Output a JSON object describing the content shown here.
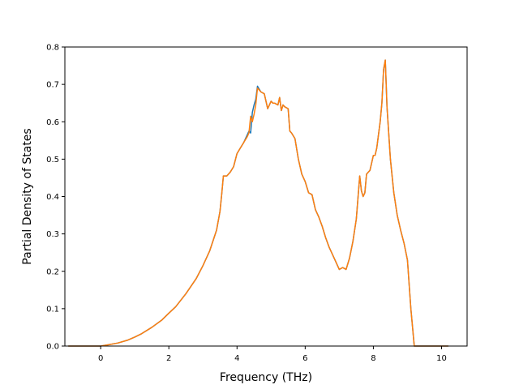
{
  "chart_data": {
    "type": "line",
    "title": "",
    "xlabel": "Frequency (THz)",
    "ylabel": "Partial Density of States",
    "xlim": [
      -1.05,
      10.75
    ],
    "ylim": [
      0.0,
      0.8
    ],
    "xticks": [
      0,
      2,
      4,
      6,
      8,
      10
    ],
    "yticks": [
      0.0,
      0.1,
      0.2,
      0.3,
      0.4,
      0.5,
      0.6,
      0.7,
      0.8
    ],
    "xtick_labels": [
      "0",
      "2",
      "4",
      "6",
      "8",
      "10"
    ],
    "ytick_labels": [
      "0.0",
      "0.1",
      "0.2",
      "0.3",
      "0.4",
      "0.5",
      "0.6",
      "0.7",
      "0.8"
    ],
    "grid": false,
    "legend": "none",
    "series": [
      {
        "color": "#1f77b4",
        "x": [
          -0.95,
          0.0,
          0.2,
          0.5,
          0.8,
          1.0,
          1.2,
          1.5,
          1.8,
          2.0,
          2.2,
          2.5,
          2.8,
          3.0,
          3.2,
          3.4,
          3.5,
          3.55,
          3.6,
          3.7,
          3.8,
          3.9,
          4.0,
          4.1,
          4.2,
          4.3,
          4.35,
          4.4,
          4.45,
          4.5,
          4.55,
          4.6,
          4.7,
          4.8,
          4.9,
          5.0,
          5.05,
          5.1,
          5.2,
          5.25,
          5.3,
          5.35,
          5.4,
          5.5,
          5.55,
          5.6,
          5.7,
          5.8,
          5.9,
          6.0,
          6.1,
          6.2,
          6.3,
          6.4,
          6.5,
          6.6,
          6.7,
          6.8,
          6.9,
          7.0,
          7.1,
          7.2,
          7.3,
          7.4,
          7.5,
          7.6,
          7.65,
          7.7,
          7.75,
          7.8,
          7.85,
          7.9,
          7.95,
          8.0,
          8.05,
          8.1,
          8.15,
          8.2,
          8.25,
          8.3,
          8.35,
          8.4,
          8.45,
          8.5,
          8.6,
          8.7,
          8.8,
          8.9,
          9.0,
          9.1,
          9.15,
          9.2,
          9.25,
          9.3,
          9.5,
          10.2
        ],
        "y": [
          0.0,
          0.0,
          0.003,
          0.008,
          0.016,
          0.024,
          0.033,
          0.05,
          0.07,
          0.088,
          0.105,
          0.14,
          0.18,
          0.215,
          0.255,
          0.31,
          0.36,
          0.405,
          0.455,
          0.455,
          0.465,
          0.48,
          0.515,
          0.53,
          0.545,
          0.565,
          0.575,
          0.57,
          0.625,
          0.645,
          0.66,
          0.695,
          0.68,
          0.675,
          0.635,
          0.655,
          0.65,
          0.65,
          0.645,
          0.665,
          0.63,
          0.645,
          0.64,
          0.635,
          0.575,
          0.57,
          0.555,
          0.5,
          0.46,
          0.44,
          0.41,
          0.405,
          0.365,
          0.345,
          0.32,
          0.29,
          0.265,
          0.245,
          0.225,
          0.205,
          0.21,
          0.205,
          0.235,
          0.28,
          0.34,
          0.455,
          0.415,
          0.4,
          0.41,
          0.46,
          0.465,
          0.47,
          0.49,
          0.51,
          0.51,
          0.53,
          0.565,
          0.6,
          0.65,
          0.74,
          0.765,
          0.64,
          0.57,
          0.5,
          0.41,
          0.35,
          0.31,
          0.275,
          0.23,
          0.1,
          0.05,
          0.0,
          0.0,
          0.0,
          0.0,
          0.0
        ]
      },
      {
        "color": "#ff7f0e",
        "x": [
          -0.95,
          0.0,
          0.2,
          0.5,
          0.8,
          1.0,
          1.2,
          1.5,
          1.8,
          2.0,
          2.2,
          2.5,
          2.8,
          3.0,
          3.2,
          3.4,
          3.5,
          3.55,
          3.6,
          3.7,
          3.8,
          3.9,
          4.0,
          4.1,
          4.2,
          4.3,
          4.35,
          4.4,
          4.45,
          4.5,
          4.55,
          4.6,
          4.7,
          4.8,
          4.9,
          5.0,
          5.05,
          5.1,
          5.2,
          5.25,
          5.3,
          5.35,
          5.4,
          5.5,
          5.55,
          5.6,
          5.7,
          5.8,
          5.9,
          6.0,
          6.1,
          6.2,
          6.3,
          6.4,
          6.5,
          6.6,
          6.7,
          6.8,
          6.9,
          7.0,
          7.1,
          7.2,
          7.3,
          7.4,
          7.5,
          7.6,
          7.65,
          7.7,
          7.75,
          7.8,
          7.85,
          7.9,
          7.95,
          8.0,
          8.05,
          8.1,
          8.15,
          8.2,
          8.25,
          8.3,
          8.35,
          8.4,
          8.45,
          8.5,
          8.6,
          8.7,
          8.8,
          8.9,
          9.0,
          9.1,
          9.15,
          9.2,
          9.25,
          9.3,
          9.5,
          10.2
        ],
        "y": [
          0.0,
          0.0,
          0.003,
          0.008,
          0.016,
          0.024,
          0.033,
          0.05,
          0.07,
          0.088,
          0.105,
          0.14,
          0.18,
          0.215,
          0.255,
          0.31,
          0.36,
          0.405,
          0.455,
          0.455,
          0.465,
          0.48,
          0.515,
          0.53,
          0.545,
          0.56,
          0.57,
          0.615,
          0.6,
          0.62,
          0.645,
          0.69,
          0.68,
          0.675,
          0.635,
          0.655,
          0.65,
          0.65,
          0.645,
          0.665,
          0.63,
          0.645,
          0.64,
          0.635,
          0.575,
          0.57,
          0.555,
          0.5,
          0.46,
          0.44,
          0.41,
          0.405,
          0.365,
          0.345,
          0.32,
          0.29,
          0.265,
          0.245,
          0.225,
          0.205,
          0.21,
          0.205,
          0.235,
          0.28,
          0.34,
          0.455,
          0.415,
          0.4,
          0.41,
          0.46,
          0.465,
          0.47,
          0.49,
          0.51,
          0.51,
          0.53,
          0.565,
          0.6,
          0.65,
          0.74,
          0.765,
          0.64,
          0.57,
          0.5,
          0.41,
          0.35,
          0.31,
          0.275,
          0.23,
          0.1,
          0.05,
          0.0,
          0.0,
          0.0,
          0.0,
          0.0
        ]
      }
    ]
  }
}
